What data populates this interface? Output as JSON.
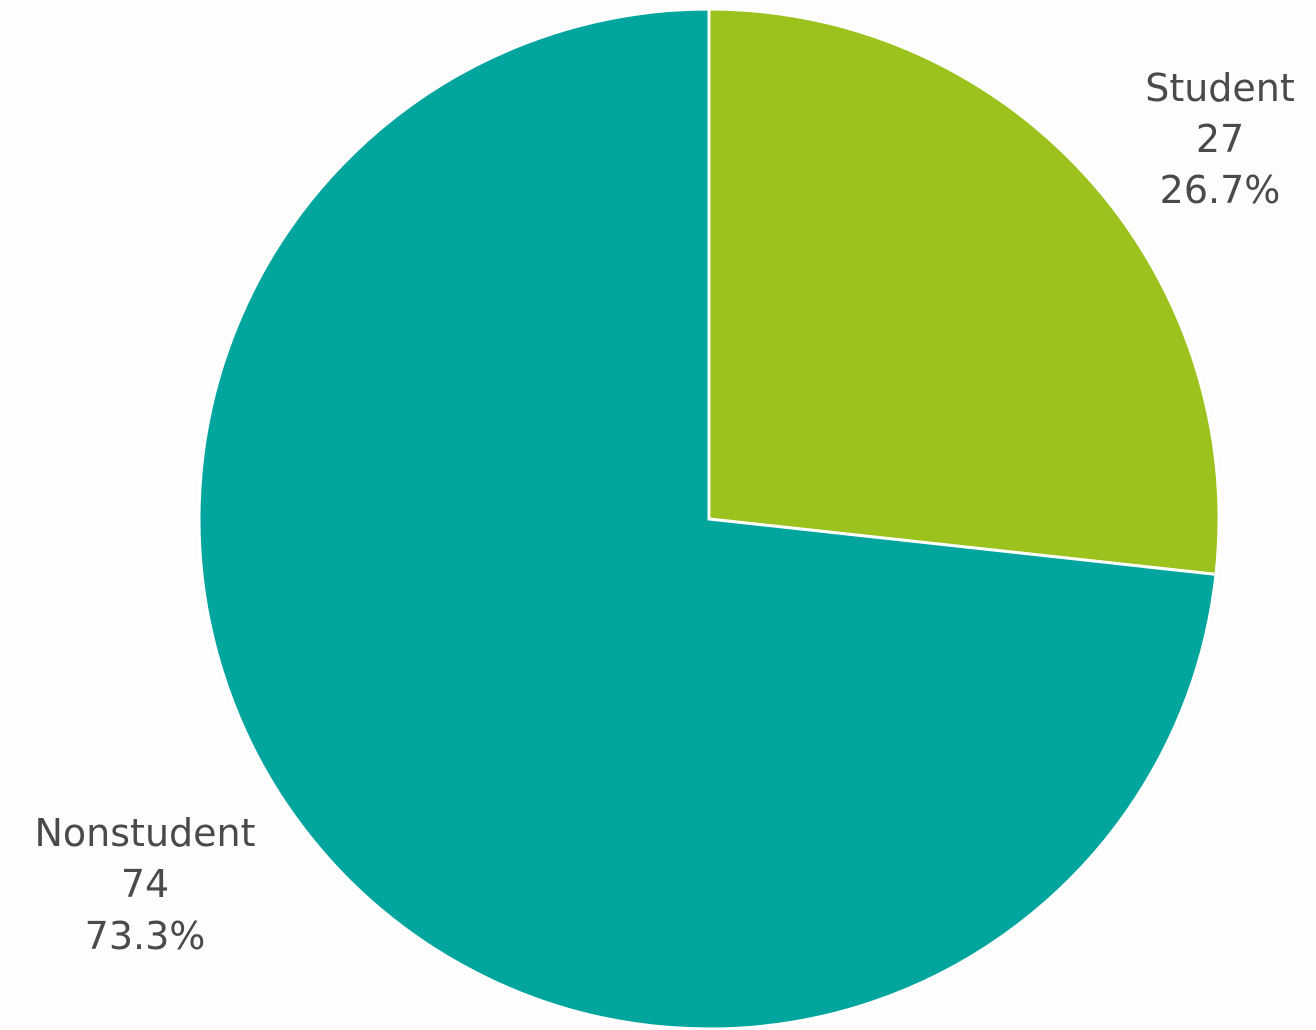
{
  "chart_data": {
    "type": "pie",
    "title": "",
    "start_angle_deg": 0,
    "direction": "clockwise",
    "slices": [
      {
        "label": "Student",
        "value": 27,
        "value_text": "27",
        "percent_text": "26.7%",
        "color": "#9bc21d",
        "label_position": "top-right"
      },
      {
        "label": "Nonstudent",
        "value": 74,
        "value_text": "74",
        "percent_text": "73.3%",
        "color": "#00a59e",
        "label_position": "bottom-left"
      }
    ],
    "legend": "none"
  }
}
